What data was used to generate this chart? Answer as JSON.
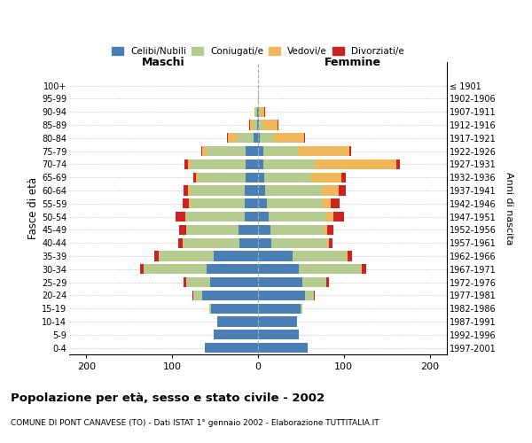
{
  "age_groups": [
    "0-4",
    "5-9",
    "10-14",
    "15-19",
    "20-24",
    "25-29",
    "30-34",
    "35-39",
    "40-44",
    "45-49",
    "50-54",
    "55-59",
    "60-64",
    "65-69",
    "70-74",
    "75-79",
    "80-84",
    "85-89",
    "90-94",
    "95-99",
    "100+"
  ],
  "birth_years": [
    "1997-2001",
    "1992-1996",
    "1987-1991",
    "1982-1986",
    "1977-1981",
    "1972-1976",
    "1967-1971",
    "1962-1966",
    "1957-1961",
    "1952-1956",
    "1947-1951",
    "1942-1946",
    "1937-1941",
    "1932-1936",
    "1927-1931",
    "1922-1926",
    "1917-1921",
    "1912-1916",
    "1907-1911",
    "1902-1906",
    "≤ 1901"
  ],
  "maschi": {
    "celibi": [
      62,
      52,
      48,
      55,
      65,
      56,
      60,
      52,
      22,
      23,
      16,
      15,
      16,
      14,
      14,
      14,
      5,
      1,
      1,
      0,
      0
    ],
    "coniugati": [
      0,
      0,
      0,
      2,
      10,
      28,
      73,
      64,
      65,
      61,
      68,
      64,
      63,
      55,
      64,
      46,
      20,
      4,
      2,
      0,
      0
    ],
    "vedovi": [
      0,
      0,
      0,
      0,
      0,
      0,
      0,
      0,
      1,
      0,
      1,
      2,
      3,
      3,
      4,
      5,
      10,
      4,
      1,
      0,
      0
    ],
    "divorziati": [
      0,
      0,
      0,
      0,
      1,
      3,
      4,
      5,
      5,
      8,
      11,
      7,
      5,
      3,
      4,
      1,
      1,
      1,
      0,
      0,
      0
    ]
  },
  "femmine": {
    "nubili": [
      58,
      48,
      45,
      50,
      55,
      52,
      48,
      40,
      16,
      14,
      12,
      10,
      8,
      7,
      6,
      6,
      2,
      1,
      1,
      0,
      0
    ],
    "coniugate": [
      0,
      0,
      0,
      2,
      10,
      28,
      72,
      62,
      65,
      62,
      68,
      65,
      66,
      55,
      60,
      40,
      17,
      4,
      1,
      0,
      0
    ],
    "vedove": [
      0,
      0,
      0,
      0,
      0,
      0,
      1,
      2,
      2,
      5,
      8,
      10,
      20,
      35,
      95,
      60,
      35,
      18,
      5,
      1,
      0
    ],
    "divorziate": [
      0,
      0,
      0,
      0,
      1,
      3,
      5,
      5,
      4,
      7,
      12,
      10,
      8,
      5,
      4,
      2,
      1,
      1,
      1,
      0,
      0
    ]
  },
  "colors": {
    "celibi": "#4a7fb5",
    "coniugati": "#b5cc8e",
    "vedovi": "#f0b85a",
    "divorziati": "#cc2222"
  },
  "xlim": 220,
  "title": "Popolazione per età, sesso e stato civile - 2002",
  "subtitle": "COMUNE DI PONT CANAVESE (TO) - Dati ISTAT 1° gennaio 2002 - Elaborazione TUTTITALIA.IT",
  "ylabel": "Fasce di età",
  "ylabel_right": "Anni di nascita",
  "xlabel_maschi": "Maschi",
  "xlabel_femmine": "Femmine"
}
